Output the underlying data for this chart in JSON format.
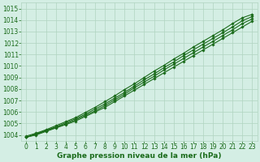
{
  "xlabel": "Graphe pression niveau de la mer (hPa)",
  "xlim": [
    -0.5,
    23.5
  ],
  "ylim": [
    1003.5,
    1015.5
  ],
  "yticks": [
    1004,
    1005,
    1006,
    1007,
    1008,
    1009,
    1010,
    1011,
    1012,
    1013,
    1014,
    1015
  ],
  "xticks": [
    0,
    1,
    2,
    3,
    4,
    5,
    6,
    7,
    8,
    9,
    10,
    11,
    12,
    13,
    14,
    15,
    16,
    17,
    18,
    19,
    20,
    21,
    22,
    23
  ],
  "bg_color": "#d4eee4",
  "grid_color": "#b0d4c0",
  "line_color": "#1a6b1a",
  "line_width": 0.8,
  "marker": "D",
  "marker_size": 1.8,
  "lines": [
    [
      1003.8,
      1004.0,
      1004.3,
      1004.6,
      1004.9,
      1005.2,
      1005.6,
      1006.0,
      1006.4,
      1006.9,
      1007.4,
      1007.9,
      1008.4,
      1008.9,
      1009.4,
      1009.9,
      1010.4,
      1010.9,
      1011.4,
      1011.9,
      1012.4,
      1012.9,
      1013.4,
      1013.9
    ],
    [
      1003.8,
      1004.05,
      1004.35,
      1004.65,
      1004.95,
      1005.3,
      1005.7,
      1006.1,
      1006.55,
      1007.05,
      1007.55,
      1008.1,
      1008.6,
      1009.1,
      1009.65,
      1010.15,
      1010.65,
      1011.15,
      1011.65,
      1012.15,
      1012.65,
      1013.15,
      1013.7,
      1014.1
    ],
    [
      1003.8,
      1004.1,
      1004.4,
      1004.7,
      1005.05,
      1005.4,
      1005.8,
      1006.25,
      1006.7,
      1007.2,
      1007.7,
      1008.25,
      1008.8,
      1009.3,
      1009.85,
      1010.35,
      1010.9,
      1011.4,
      1011.9,
      1012.4,
      1012.9,
      1013.4,
      1013.95,
      1014.3
    ],
    [
      1003.9,
      1004.15,
      1004.45,
      1004.8,
      1005.15,
      1005.5,
      1005.95,
      1006.4,
      1006.9,
      1007.4,
      1007.95,
      1008.45,
      1009.0,
      1009.55,
      1010.05,
      1010.6,
      1011.1,
      1011.65,
      1012.15,
      1012.65,
      1013.15,
      1013.7,
      1014.2,
      1014.5
    ]
  ],
  "tick_fontsize": 5.5,
  "xlabel_fontsize": 6.5,
  "tick_color": "#1a6b1a",
  "label_color": "#1a6b1a"
}
